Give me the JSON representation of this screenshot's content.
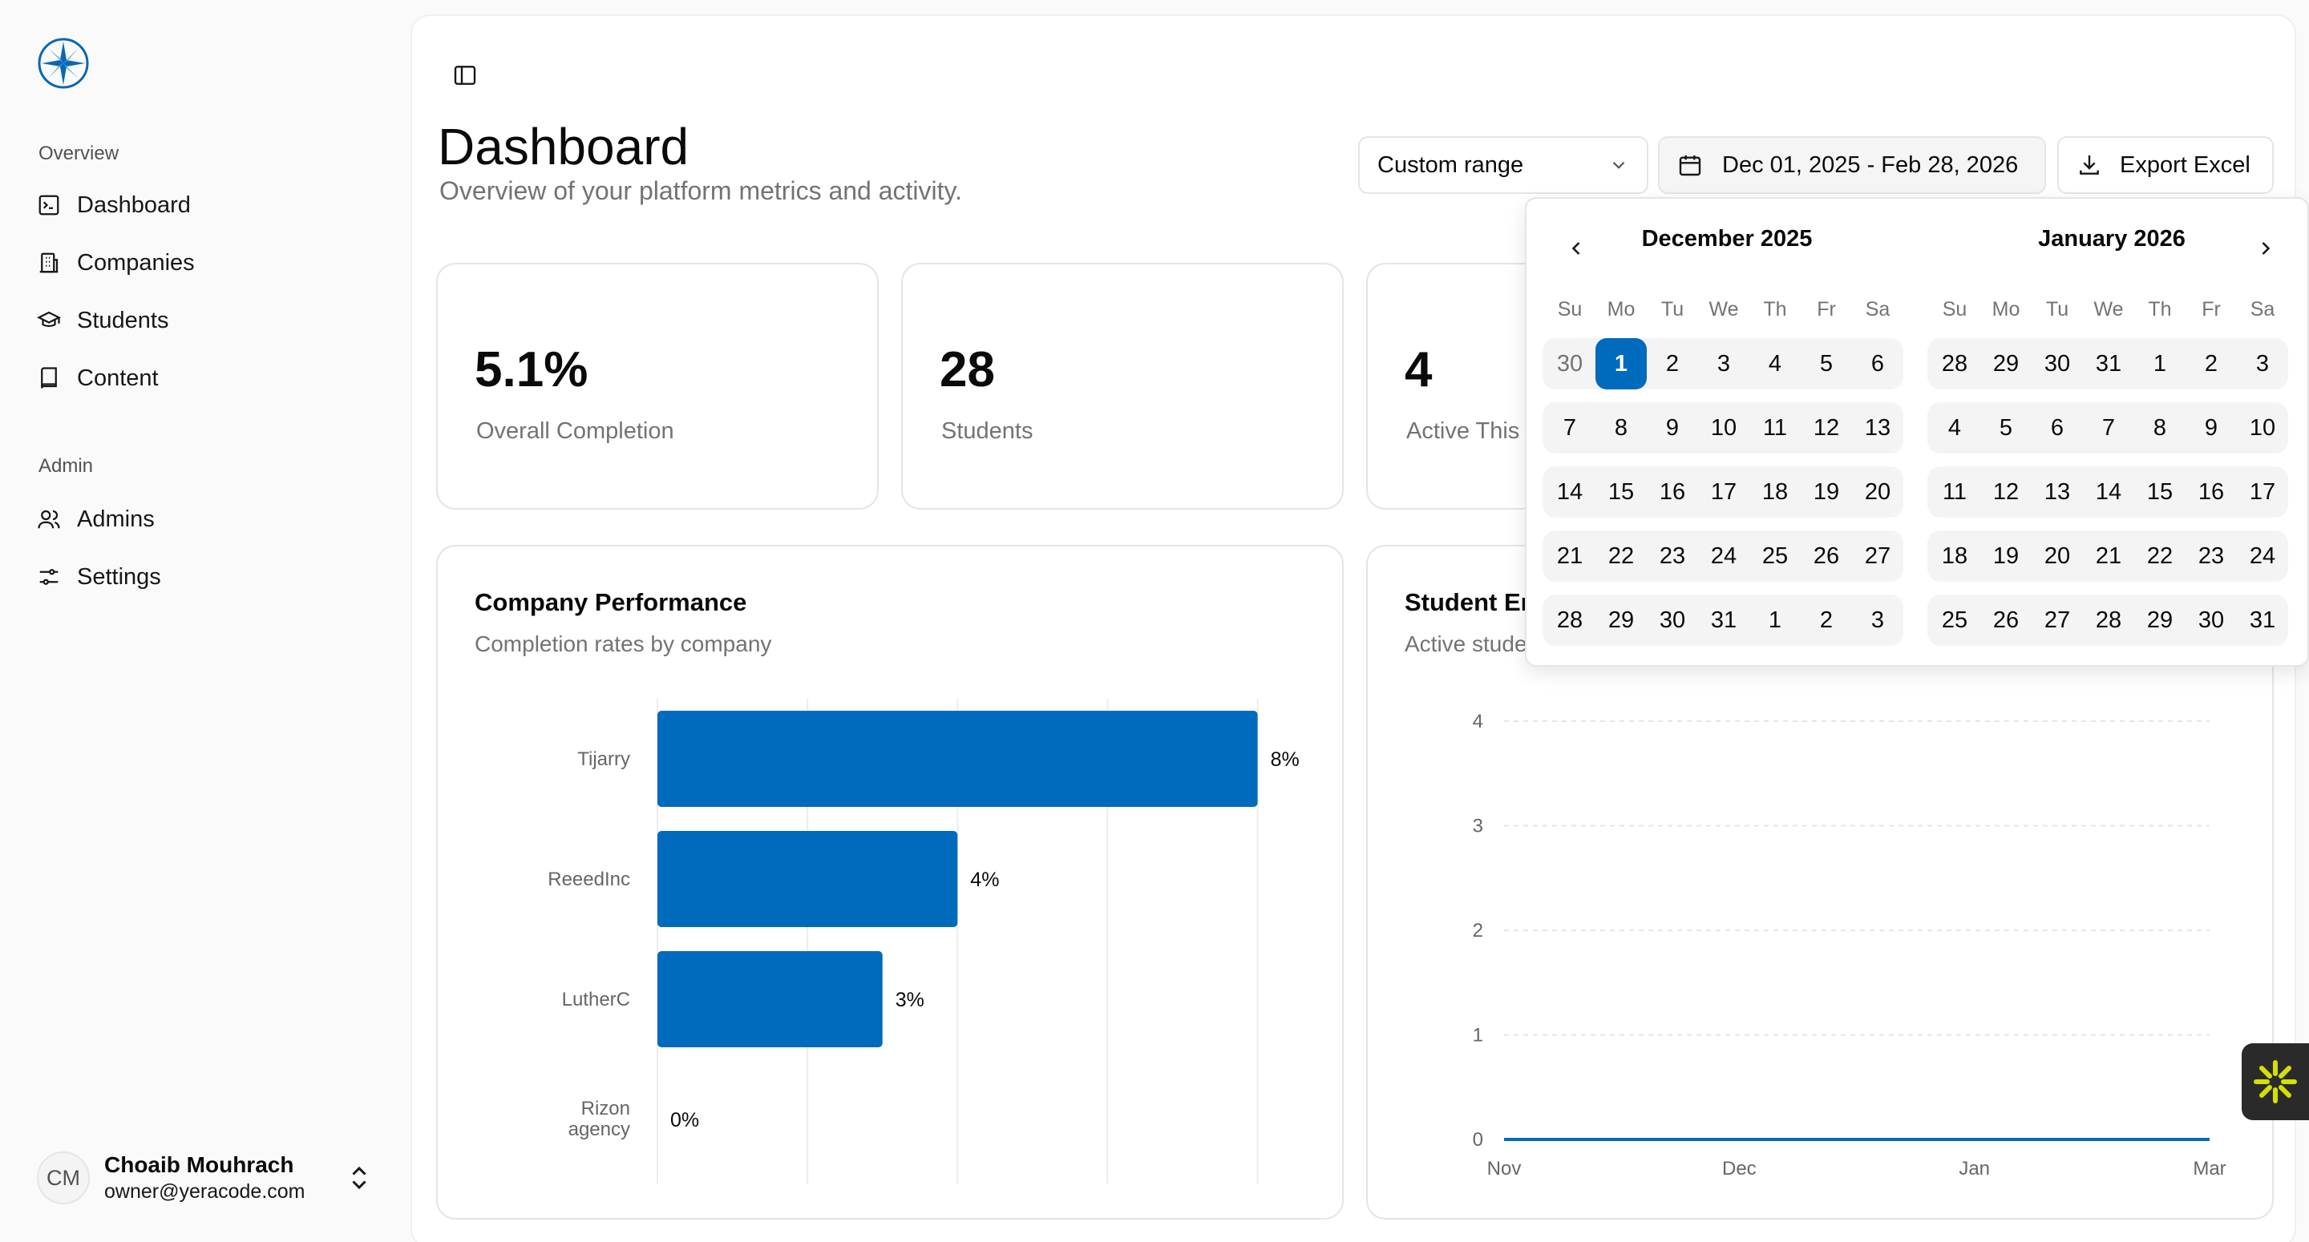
{
  "sidebar": {
    "groups": [
      {
        "label": "Overview",
        "items": [
          {
            "label": "Dashboard",
            "icon": "terminal-square-icon"
          },
          {
            "label": "Companies",
            "icon": "building-icon"
          },
          {
            "label": "Students",
            "icon": "graduation-cap-icon"
          },
          {
            "label": "Content",
            "icon": "book-icon"
          }
        ]
      },
      {
        "label": "Admin",
        "items": [
          {
            "label": "Admins",
            "icon": "users-icon"
          },
          {
            "label": "Settings",
            "icon": "sliders-icon"
          }
        ]
      }
    ],
    "user": {
      "initials": "CM",
      "name": "Choaib Mouhrach",
      "email": "owner@yeracode.com"
    }
  },
  "header": {
    "title": "Dashboard",
    "subtitle": "Overview of your platform metrics and activity.",
    "range_select": "Custom range",
    "date_range": "Dec 01, 2025 - Feb 28, 2026",
    "export_label": "Export Excel"
  },
  "stats": [
    {
      "value": "5.1%",
      "label": "Overall Completion"
    },
    {
      "value": "28",
      "label": "Students"
    },
    {
      "value": "4",
      "label": "Active This"
    }
  ],
  "company_card": {
    "title": "Company Performance",
    "subtitle": "Completion rates by company"
  },
  "student_card": {
    "title": "Student En",
    "subtitle": "Active stude"
  },
  "calendar": {
    "months": [
      {
        "title": "December 2025",
        "weeks": [
          [
            "30",
            "1",
            "2",
            "3",
            "4",
            "5",
            "6"
          ],
          [
            "7",
            "8",
            "9",
            "10",
            "11",
            "12",
            "13"
          ],
          [
            "14",
            "15",
            "16",
            "17",
            "18",
            "19",
            "20"
          ],
          [
            "21",
            "22",
            "23",
            "24",
            "25",
            "26",
            "27"
          ],
          [
            "28",
            "29",
            "30",
            "31",
            "1",
            "2",
            "3"
          ]
        ]
      },
      {
        "title": "January 2026",
        "weeks": [
          [
            "28",
            "29",
            "30",
            "31",
            "1",
            "2",
            "3"
          ],
          [
            "4",
            "5",
            "6",
            "7",
            "8",
            "9",
            "10"
          ],
          [
            "11",
            "12",
            "13",
            "14",
            "15",
            "16",
            "17"
          ],
          [
            "18",
            "19",
            "20",
            "21",
            "22",
            "23",
            "24"
          ],
          [
            "25",
            "26",
            "27",
            "28",
            "29",
            "30",
            "31"
          ]
        ]
      }
    ],
    "weekdays": [
      "Su",
      "Mo",
      "Tu",
      "We",
      "Th",
      "Fr",
      "Sa"
    ],
    "selected_day": "1"
  },
  "chart_data": [
    {
      "type": "bar",
      "orientation": "horizontal",
      "categories": [
        "Tijarry",
        "ReeedInc",
        "LutherC",
        "Rizon agency"
      ],
      "values": [
        8,
        4,
        3,
        0
      ],
      "value_labels": [
        "8%",
        "4%",
        "3%",
        "0%"
      ],
      "xlim": [
        0,
        8
      ],
      "color": "#006bbd",
      "grid": "vertical"
    },
    {
      "type": "line",
      "x": [
        "Nov",
        "Dec",
        "Jan",
        "Mar"
      ],
      "xticks": [
        "Nov",
        "Dec",
        "Jan",
        "Mar"
      ],
      "values": [
        0,
        0,
        0,
        0
      ],
      "ylim": [
        0,
        4
      ],
      "yticks": [
        "0",
        "1",
        "2",
        "3",
        "4"
      ],
      "color": "#006bbd",
      "grid": "horizontal-dashed"
    }
  ],
  "colors": {
    "accent": "#006bbd",
    "fab": "#d4e000"
  }
}
